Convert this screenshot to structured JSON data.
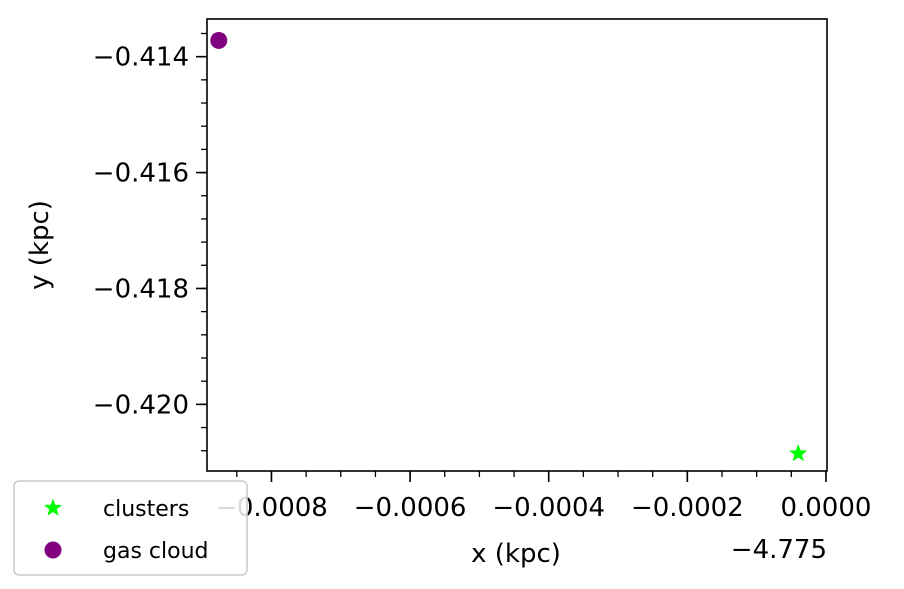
{
  "chart_data": {
    "type": "scatter",
    "xlabel": "x (kpc)",
    "ylabel": "y (kpc)",
    "x_offset_label": "−4.775",
    "xlim": [
      -0.000893,
      1.5e-06
    ],
    "ylim": [
      -0.42115,
      -0.41335
    ],
    "x_ticks": [
      -0.0008,
      -0.0006,
      -0.0004,
      -0.0002,
      0.0
    ],
    "x_tick_labels": [
      "−0.0008",
      "−0.0006",
      "−0.0004",
      "−0.0002",
      "0.0000"
    ],
    "y_ticks": [
      -0.414,
      -0.416,
      -0.418,
      -0.42
    ],
    "y_tick_labels": [
      "−0.414",
      "−0.416",
      "−0.418",
      "−0.420"
    ],
    "x_minor_step": 5e-05,
    "y_minor_step": 0.0004,
    "grid": false,
    "legend_position": "bottom-left",
    "series": [
      {
        "name": "clusters",
        "marker": "star",
        "color": "#00ff00",
        "points": [
          {
            "x": -4e-05,
            "y": -0.42085
          }
        ]
      },
      {
        "name": "gas cloud",
        "marker": "circle",
        "color": "#800080",
        "points": [
          {
            "x": -0.000876,
            "y": -0.41372
          }
        ]
      }
    ]
  }
}
